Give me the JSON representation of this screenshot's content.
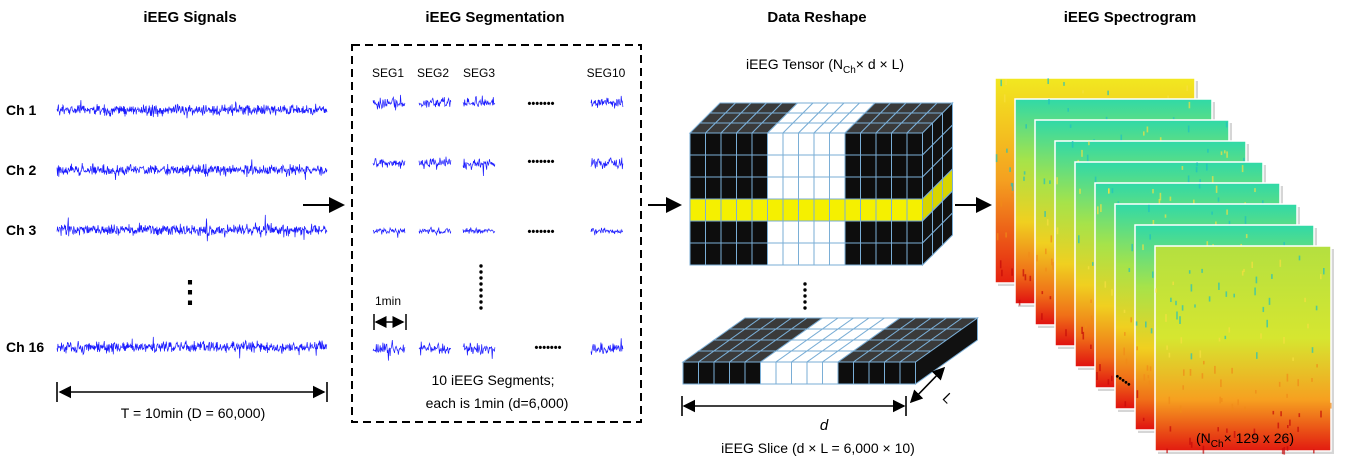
{
  "titles": {
    "signals": "iEEG Signals",
    "segmentation": "iEEG Segmentation",
    "reshape": "Data Reshape",
    "spectrogram": "iEEG Spectrogram"
  },
  "channels": [
    "Ch 1",
    "Ch 2",
    "Ch 3",
    "Ch 16"
  ],
  "channel_ellipsis": "⋮",
  "signal_duration_label": "T = 10min (D = 60,000)",
  "segments": {
    "headers": [
      "SEG1",
      "SEG2",
      "SEG3",
      "SEG10"
    ],
    "row_ellipsis": "•••••••",
    "duration_label": "1min",
    "caption_line1": "10 iEEG Segments;",
    "caption_line2": "each is 1min (d=6,000)"
  },
  "tensor": {
    "label_prefix": "iEEG Tensor (N",
    "label_sub": "Ch",
    "label_suffix": "× d × L)",
    "highlight_color": "#f5f000",
    "dark_color": "#0d0d0d"
  },
  "slice": {
    "d_label": "d",
    "l_label": "L",
    "caption": "iEEG Slice (d × L = 6,000 × 10)"
  },
  "spectrogram": {
    "label_prefix": "(N",
    "label_sub": "Ch",
    "label_suffix": "× 129 x 26)",
    "ellipsis": "•••••"
  },
  "colors": {
    "signal": "#1a1aff",
    "cell_border": "#7aaed6"
  }
}
